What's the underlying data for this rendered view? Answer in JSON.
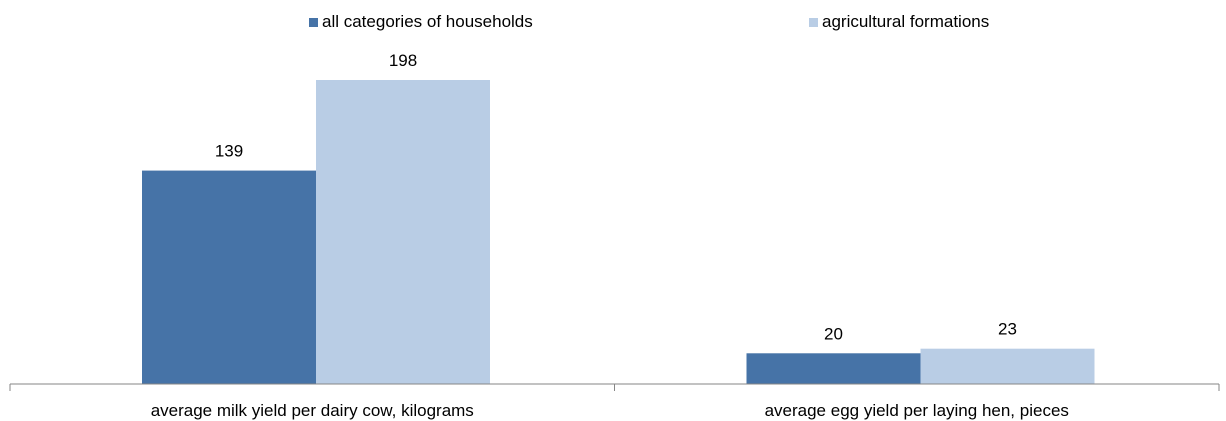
{
  "chart_data": {
    "type": "bar",
    "categories": [
      "average milk yield per dairy cow, kilograms",
      "average egg yield per laying hen, pieces"
    ],
    "series": [
      {
        "name": "all categories of households",
        "values": [
          139,
          20
        ],
        "color": "#4673A7"
      },
      {
        "name": "agricultural formations",
        "values": [
          198,
          23
        ],
        "color": "#B9CDE5"
      }
    ],
    "data_labels": true,
    "ylim": [
      0,
      198
    ],
    "grid": false,
    "legend_position": "top",
    "axis_color": "#868686"
  }
}
